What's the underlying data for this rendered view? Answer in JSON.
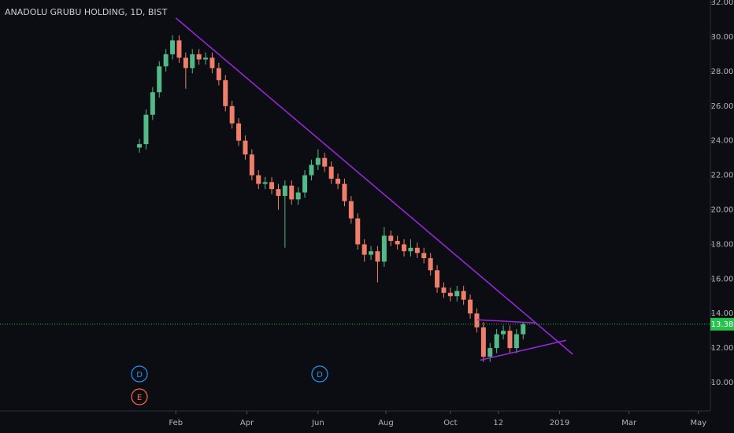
{
  "chart_data": {
    "type": "candlestick",
    "title": "ANADOLU GRUBU HOLDING, 1D, BIST",
    "background": "#0b0d12",
    "up_color": "#53b987",
    "down_color": "#ef7f6a",
    "x": [
      0,
      4,
      8,
      12,
      16,
      20,
      24,
      28,
      32,
      36,
      40,
      44,
      48,
      52,
      56,
      60,
      64,
      68,
      72,
      76,
      80,
      84,
      88,
      92,
      96,
      100,
      104,
      108,
      112,
      116,
      120,
      124,
      128,
      132,
      136,
      140,
      144,
      148,
      152,
      156,
      160,
      164,
      168,
      172,
      176,
      180,
      184,
      188,
      192,
      196,
      200,
      204,
      208,
      212,
      216,
      220,
      224,
      228,
      232
    ],
    "open": [
      23.6,
      23.8,
      25.5,
      26.8,
      28.3,
      29.0,
      29.8,
      28.8,
      28.2,
      29.0,
      28.7,
      28.8,
      28.2,
      27.5,
      26.0,
      25.0,
      24.0,
      23.2,
      22.0,
      21.5,
      21.6,
      21.2,
      20.8,
      21.4,
      20.6,
      21.0,
      22.0,
      22.6,
      23.0,
      22.5,
      21.8,
      21.5,
      20.5,
      19.5,
      18.0,
      17.4,
      17.6,
      17.0,
      18.5,
      18.2,
      18.0,
      17.6,
      17.8,
      17.5,
      17.2,
      16.5,
      15.5,
      15.2,
      15.0,
      15.3,
      14.8,
      14.0,
      13.2,
      11.5,
      12.0,
      12.8,
      13.0,
      12.0,
      12.8
    ],
    "high": [
      24.1,
      25.8,
      27.1,
      28.6,
      29.3,
      30.1,
      30.1,
      29.1,
      29.3,
      29.3,
      29.1,
      29.1,
      28.5,
      27.8,
      26.3,
      25.3,
      24.3,
      23.5,
      22.3,
      21.9,
      21.9,
      21.5,
      21.7,
      21.7,
      21.3,
      22.3,
      22.9,
      23.5,
      23.3,
      22.8,
      22.1,
      21.8,
      20.8,
      19.8,
      18.3,
      17.9,
      17.9,
      19.0,
      18.8,
      18.5,
      18.3,
      18.3,
      18.1,
      17.8,
      17.5,
      16.8,
      15.8,
      15.5,
      15.6,
      15.6,
      15.1,
      14.3,
      13.5,
      12.3,
      13.1,
      13.3,
      13.3,
      13.1,
      13.5
    ],
    "low": [
      23.3,
      23.5,
      25.2,
      26.5,
      28.0,
      28.7,
      28.5,
      27.0,
      27.9,
      28.4,
      28.4,
      27.9,
      27.2,
      25.7,
      24.7,
      23.7,
      22.9,
      21.7,
      21.2,
      21.2,
      20.9,
      20.0,
      17.8,
      20.3,
      20.3,
      20.7,
      21.7,
      22.3,
      22.2,
      21.5,
      21.2,
      20.2,
      19.2,
      17.7,
      17.0,
      17.1,
      15.8,
      16.7,
      17.9,
      17.7,
      17.3,
      17.3,
      17.2,
      16.9,
      16.2,
      15.2,
      14.9,
      14.7,
      14.7,
      14.5,
      13.7,
      12.9,
      11.2,
      11.2,
      11.7,
      12.5,
      11.7,
      11.7,
      12.5
    ],
    "close": [
      23.8,
      25.5,
      26.8,
      28.3,
      29.0,
      29.8,
      28.8,
      28.2,
      29.0,
      28.7,
      28.8,
      28.2,
      27.5,
      26.0,
      25.0,
      24.0,
      23.2,
      22.0,
      21.5,
      21.6,
      21.2,
      20.8,
      21.4,
      20.6,
      21.0,
      22.0,
      22.6,
      23.0,
      22.5,
      21.8,
      21.5,
      20.5,
      19.5,
      18.0,
      17.4,
      17.6,
      17.0,
      18.5,
      18.2,
      18.0,
      17.6,
      17.8,
      17.5,
      17.2,
      16.5,
      15.5,
      15.2,
      15.0,
      15.3,
      14.8,
      14.0,
      13.2,
      11.5,
      12.0,
      12.8,
      13.0,
      12.0,
      12.8,
      13.38
    ],
    "xlim": [
      -84.3,
      345.2
    ],
    "ylim": [
      8.36,
      32.14
    ],
    "xticks": [
      {
        "value": 22,
        "label": "Feb"
      },
      {
        "value": 65,
        "label": "Apr"
      },
      {
        "value": 108,
        "label": "Jun"
      },
      {
        "value": 149,
        "label": "Aug"
      },
      {
        "value": 188,
        "label": "Oct"
      },
      {
        "value": 217,
        "label": "12"
      },
      {
        "value": 254,
        "label": "2019"
      },
      {
        "value": 296,
        "label": "Mar"
      },
      {
        "value": 338,
        "label": "May"
      }
    ],
    "yticks": [
      {
        "value": 10,
        "label": "10.00"
      },
      {
        "value": 12,
        "label": "12.00"
      },
      {
        "value": 14,
        "label": "14.00"
      },
      {
        "value": 16,
        "label": "16.00"
      },
      {
        "value": 18,
        "label": "18.00"
      },
      {
        "value": 20,
        "label": "20.00"
      },
      {
        "value": 22,
        "label": "22.00"
      },
      {
        "value": 24,
        "label": "24.00"
      },
      {
        "value": 26,
        "label": "26.00"
      },
      {
        "value": 28,
        "label": "28.00"
      },
      {
        "value": 30,
        "label": "30.00"
      },
      {
        "value": 32,
        "label": "32.00"
      }
    ],
    "drawings": [
      {
        "color": "#9c27e0",
        "x": [
          22,
          262
        ],
        "y": [
          31.1,
          11.64
        ]
      },
      {
        "color": "#9c27e0",
        "x": [
          206,
          258
        ],
        "y": [
          11.3,
          12.45
        ]
      },
      {
        "color": "#9c27e0",
        "x": [
          204,
          240
        ],
        "y": [
          13.64,
          13.45
        ]
      }
    ],
    "events": [
      {
        "x": 0,
        "label": "D",
        "color": "#2196f3",
        "row": 0
      },
      {
        "x": 0,
        "label": "E",
        "color": "#ff6d3b",
        "row": 1
      },
      {
        "x": 109,
        "label": "D",
        "color": "#2196f3",
        "row": 0
      }
    ],
    "price_line_color": "#27c24c"
  }
}
